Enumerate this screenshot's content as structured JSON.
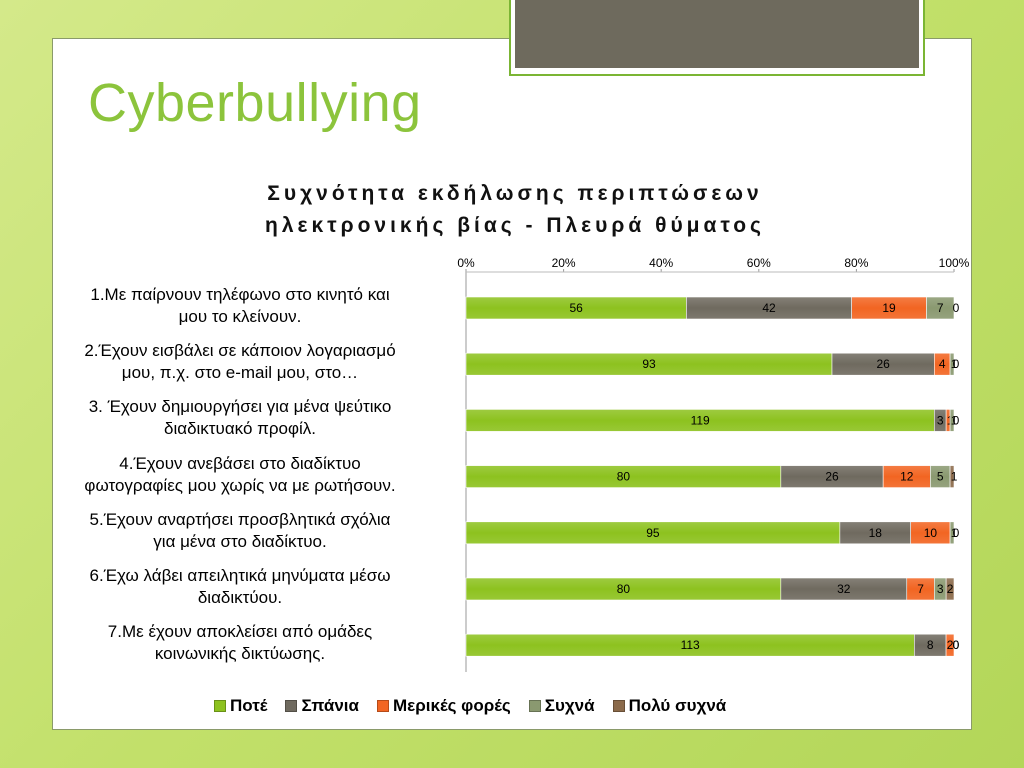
{
  "slide": {
    "title": "Cyberbullying"
  },
  "chart_data": {
    "type": "bar",
    "orientation": "horizontal",
    "stacked": "percent",
    "title_lines": [
      "Συχνότητα εκδήλωσης περιπτώσεων",
      "ηλεκτρονικής βίας - Πλευρά θύματος"
    ],
    "categories": [
      [
        "1.Με παίρνουν τηλέφωνο στο κινητό και",
        "μου το κλείνουν."
      ],
      [
        "2.Έχουν εισβάλει σε κάποιον λογαριασμό",
        "μου, π.χ. στο e-mail μου, στο…"
      ],
      [
        "3. Έχουν δημιουργήσει για μένα ψεύτικο",
        "διαδικτυακό προφίλ."
      ],
      [
        "4.Έχουν ανεβάσει στο διαδίκτυο",
        "φωτογραφίες μου χωρίς να με ρωτήσουν."
      ],
      [
        "5.Έχουν αναρτήσει προσβλητικά σχόλια",
        "για μένα στο διαδίκτυο."
      ],
      [
        "6.Έχω λάβει απειλητικά μηνύματα μέσω",
        "διαδικτύου."
      ],
      [
        "7.Με έχουν αποκλείσει από ομάδες",
        "κοινωνικής δικτύωσης."
      ]
    ],
    "series": [
      {
        "name": "Ποτέ",
        "color": "#8dc21f",
        "values": [
          56,
          93,
          119,
          80,
          95,
          80,
          113
        ]
      },
      {
        "name": "Σπάνια",
        "color": "#6f6a5f",
        "values": [
          42,
          26,
          3,
          26,
          18,
          32,
          8
        ]
      },
      {
        "name": "Μερικές φορές",
        "color": "#f26522",
        "values": [
          19,
          4,
          1,
          12,
          10,
          7,
          2
        ]
      },
      {
        "name": "Συχνά",
        "color": "#8a9970",
        "values": [
          7,
          1,
          1,
          5,
          1,
          3,
          0
        ]
      },
      {
        "name": "Πολύ συχνά",
        "color": "#8b6a4a",
        "values": [
          0,
          0,
          0,
          1,
          0,
          2,
          0
        ]
      }
    ],
    "x_ticks": [
      "0%",
      "20%",
      "40%",
      "60%",
      "80%",
      "100%"
    ],
    "xlim": [
      0,
      100
    ],
    "legend_position": "bottom"
  }
}
